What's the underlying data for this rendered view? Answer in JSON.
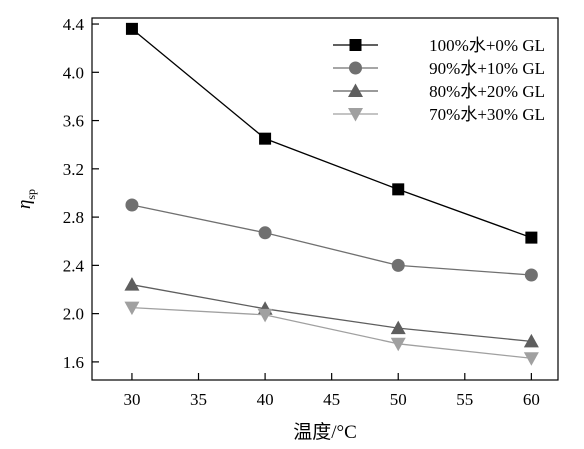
{
  "chart_data": {
    "type": "line",
    "xlabel": "温度/°C",
    "ylabel": "η",
    "ylabel_sub": "sp",
    "xlim": [
      27,
      62
    ],
    "ylim": [
      1.45,
      4.45
    ],
    "xticks": [
      30,
      35,
      40,
      45,
      50,
      55,
      60
    ],
    "yticks": [
      1.6,
      2.0,
      2.4,
      2.8,
      3.2,
      3.6,
      4.0,
      4.4
    ],
    "ytick_labels": [
      "1.6",
      "2.0",
      "2.4",
      "2.8",
      "3.2",
      "3.6",
      "4.0",
      "4.4"
    ],
    "grid": false,
    "legend_position": "top-right",
    "x": [
      30,
      40,
      50,
      60
    ],
    "series": [
      {
        "name": "100%水+0% GL",
        "marker": "square",
        "color": "#000000",
        "values": [
          4.36,
          3.45,
          3.03,
          2.63
        ]
      },
      {
        "name": "90%水+10% GL",
        "marker": "circle",
        "color": "#707070",
        "values": [
          2.9,
          2.67,
          2.4,
          2.32
        ]
      },
      {
        "name": "80%水+20% GL",
        "marker": "triangle-up",
        "color": "#5e5e5e",
        "values": [
          2.24,
          2.04,
          1.88,
          1.77
        ]
      },
      {
        "name": "70%水+30% GL",
        "marker": "triangle-down",
        "color": "#a0a0a0",
        "values": [
          2.05,
          1.99,
          1.75,
          1.63
        ]
      }
    ]
  }
}
